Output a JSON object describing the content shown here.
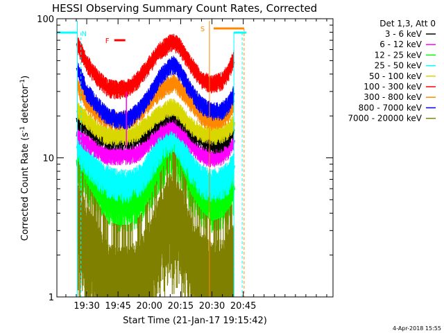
{
  "chart_data": {
    "type": "line",
    "title": "HESSI Observing Summary Count Rates, Corrected",
    "xlabel": "Start Time (21-Jan-17 19:15:42)",
    "ylabel_main": "Corrected Count Rate (s",
    "ylabel_sup1": "-1",
    "ylabel_mid": " detector",
    "ylabel_sup2": "-1",
    "ylabel_end": ")",
    "yscale": "log",
    "ylim": [
      1,
      100
    ],
    "xlim_minutes": [
      1155.7,
      1288
    ],
    "xticks": [
      {
        "t": 1170,
        "label": "19:30"
      },
      {
        "t": 1185,
        "label": "19:45"
      },
      {
        "t": 1200,
        "label": "20:00"
      },
      {
        "t": 1215,
        "label": "20:15"
      },
      {
        "t": 1230,
        "label": "20:30"
      },
      {
        "t": 1245,
        "label": "20:45"
      }
    ],
    "yticks": [
      {
        "v": 1,
        "label": "1"
      },
      {
        "v": 10,
        "label": "10"
      },
      {
        "v": 100,
        "label": "100"
      }
    ],
    "legend_title": "Det 1,3, Att 0",
    "legend_position": "right",
    "series": [
      {
        "name": "3 - 6 keV",
        "color": "#000000",
        "x": [
          1165.5,
          1170,
          1175,
          1180,
          1185,
          1190,
          1195,
          1200,
          1205,
          1210,
          1212,
          1215,
          1220,
          1225,
          1230,
          1235,
          1238,
          1240.5
        ],
        "y": [
          19,
          17,
          14.5,
          13.5,
          13.5,
          13.5,
          14,
          16,
          19,
          21,
          21,
          19,
          15.5,
          13.5,
          12.5,
          13,
          14,
          16.5
        ]
      },
      {
        "name": "6 - 12 keV",
        "color": "#ff00ff",
        "x": [
          1165.5,
          1170,
          1175,
          1180,
          1185,
          1190,
          1195,
          1200,
          1205,
          1210,
          1212,
          1215,
          1220,
          1225,
          1230,
          1235,
          1238,
          1240.5
        ],
        "y": [
          15,
          13,
          11.5,
          10.5,
          10.5,
          10.5,
          11,
          13,
          15.5,
          17,
          17,
          15.5,
          12.5,
          10.5,
          10,
          10.5,
          11.5,
          13
        ]
      },
      {
        "name": "12 - 25 keV",
        "color": "#00ff00",
        "x": [
          1165.5,
          1170,
          1175,
          1180,
          1185,
          1190,
          1195,
          1200,
          1205,
          1210,
          1212,
          1215,
          1220,
          1225,
          1230,
          1235,
          1238,
          1240.5
        ],
        "y": [
          9.5,
          7.5,
          6,
          5,
          4.6,
          4.6,
          5,
          6.5,
          9,
          11,
          11,
          9.5,
          6.5,
          5,
          4.6,
          4.8,
          5.2,
          6
        ]
      },
      {
        "name": "25 - 50 keV",
        "color": "#00ffff",
        "x": [
          1165.5,
          1170,
          1175,
          1180,
          1185,
          1190,
          1195,
          1200,
          1205,
          1210,
          1212,
          1215,
          1220,
          1225,
          1230,
          1235,
          1238,
          1240.5
        ],
        "y": [
          12.5,
          10,
          8,
          7,
          6.5,
          6.5,
          7,
          9,
          12,
          14.5,
          14.5,
          12.5,
          8.5,
          7,
          6.5,
          6.8,
          7.5,
          9
        ]
      },
      {
        "name": "50 - 100 keV",
        "color": "#d8d800",
        "x": [
          1165.5,
          1170,
          1175,
          1180,
          1185,
          1190,
          1195,
          1200,
          1205,
          1210,
          1212,
          1215,
          1220,
          1225,
          1230,
          1235,
          1238,
          1240.5
        ],
        "y": [
          22,
          19,
          16,
          14.5,
          14.5,
          14.5,
          15.5,
          18,
          21,
          23,
          23,
          21,
          17,
          15,
          14.5,
          15,
          16,
          18
        ]
      },
      {
        "name": "100 - 300 keV",
        "color": "#ff0000",
        "x": [
          1165.5,
          1167,
          1170,
          1175,
          1180,
          1185,
          1190,
          1195,
          1200,
          1205,
          1210,
          1212,
          1215,
          1220,
          1225,
          1230,
          1235,
          1238,
          1240.5
        ],
        "y": [
          65,
          60,
          48,
          38,
          32,
          31,
          32,
          37,
          47,
          59,
          67,
          68,
          62,
          47,
          37,
          34,
          36,
          42,
          52
        ]
      },
      {
        "name": "300 - 800 keV",
        "color": "#ff8800",
        "x": [
          1165.5,
          1167,
          1170,
          1175,
          1180,
          1185,
          1190,
          1195,
          1200,
          1205,
          1210,
          1212,
          1215,
          1220,
          1225,
          1230,
          1235,
          1238,
          1240.5
        ],
        "y": [
          33,
          30,
          25,
          21,
          19,
          18.5,
          19,
          21,
          25,
          30,
          34,
          35,
          31,
          25,
          20,
          18.5,
          19,
          21,
          25
        ]
      },
      {
        "name": "800 - 7000 keV",
        "color": "#0000ff",
        "x": [
          1165.5,
          1167,
          1170,
          1175,
          1180,
          1185,
          1190,
          1195,
          1200,
          1205,
          1210,
          1212,
          1215,
          1220,
          1225,
          1230,
          1235,
          1238,
          1240.5
        ],
        "y": [
          43,
          39,
          30,
          24,
          20,
          19,
          19,
          22,
          28,
          38,
          46,
          47,
          41,
          30,
          24,
          21.5,
          22,
          24.5,
          29
        ]
      },
      {
        "name": "7000 - 20000 keV",
        "color": "#808000",
        "x": [
          1165.5,
          1170,
          1175,
          1180,
          1185,
          1190,
          1195,
          1200,
          1205,
          1210,
          1212,
          1215,
          1220,
          1225,
          1230,
          1235,
          1240.5
        ],
        "y": [
          4.5,
          3,
          2.2,
          1.6,
          1.5,
          1.5,
          1.7,
          2.3,
          3.5,
          5,
          5,
          4,
          2.5,
          1.9,
          1.6,
          1.7,
          2.2
        ]
      }
    ],
    "markers": {
      "N_label": "N",
      "F_label": "F",
      "S_label": "S",
      "night_color": "#00ffff",
      "saa_color": "#ff8800",
      "flare_color": "#ff0000",
      "night_intervals": [
        [
          1155.7,
          1165.5
        ],
        [
          1240.5,
          1246.5
        ]
      ],
      "night_dashed": [
        1167.2,
        1244.5
      ],
      "saa_interval": [
        1228.8,
        1245.4
      ],
      "saa_line": 1228.8,
      "saa_dashed": 1245.4,
      "flare_interval": [
        1183.2,
        1188.5
      ]
    },
    "grid": false
  },
  "footer": {
    "datestamp": "4-Apr-2018 15:55"
  }
}
